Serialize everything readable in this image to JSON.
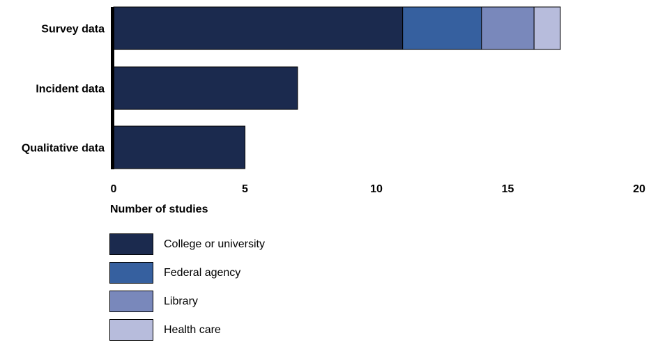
{
  "chart_data": {
    "type": "bar",
    "orientation": "horizontal",
    "stacked": true,
    "categories": [
      "Survey data",
      "Incident data",
      "Qualitative data"
    ],
    "series": [
      {
        "name": "College or university",
        "values": [
          11,
          7,
          5
        ],
        "color": "#1b2a4e"
      },
      {
        "name": "Federal agency",
        "values": [
          3,
          0,
          0
        ],
        "color": "#36609f"
      },
      {
        "name": "Library",
        "values": [
          2,
          0,
          0
        ],
        "color": "#7988bb"
      },
      {
        "name": "Health care",
        "values": [
          1,
          0,
          0
        ],
        "color": "#b7bcdc"
      }
    ],
    "xlabel": "Number of studies",
    "xlim": [
      0,
      20
    ],
    "xticks": [
      "0",
      "5",
      "10",
      "15",
      "20"
    ],
    "grid": false,
    "legend_position": "bottom-left"
  }
}
